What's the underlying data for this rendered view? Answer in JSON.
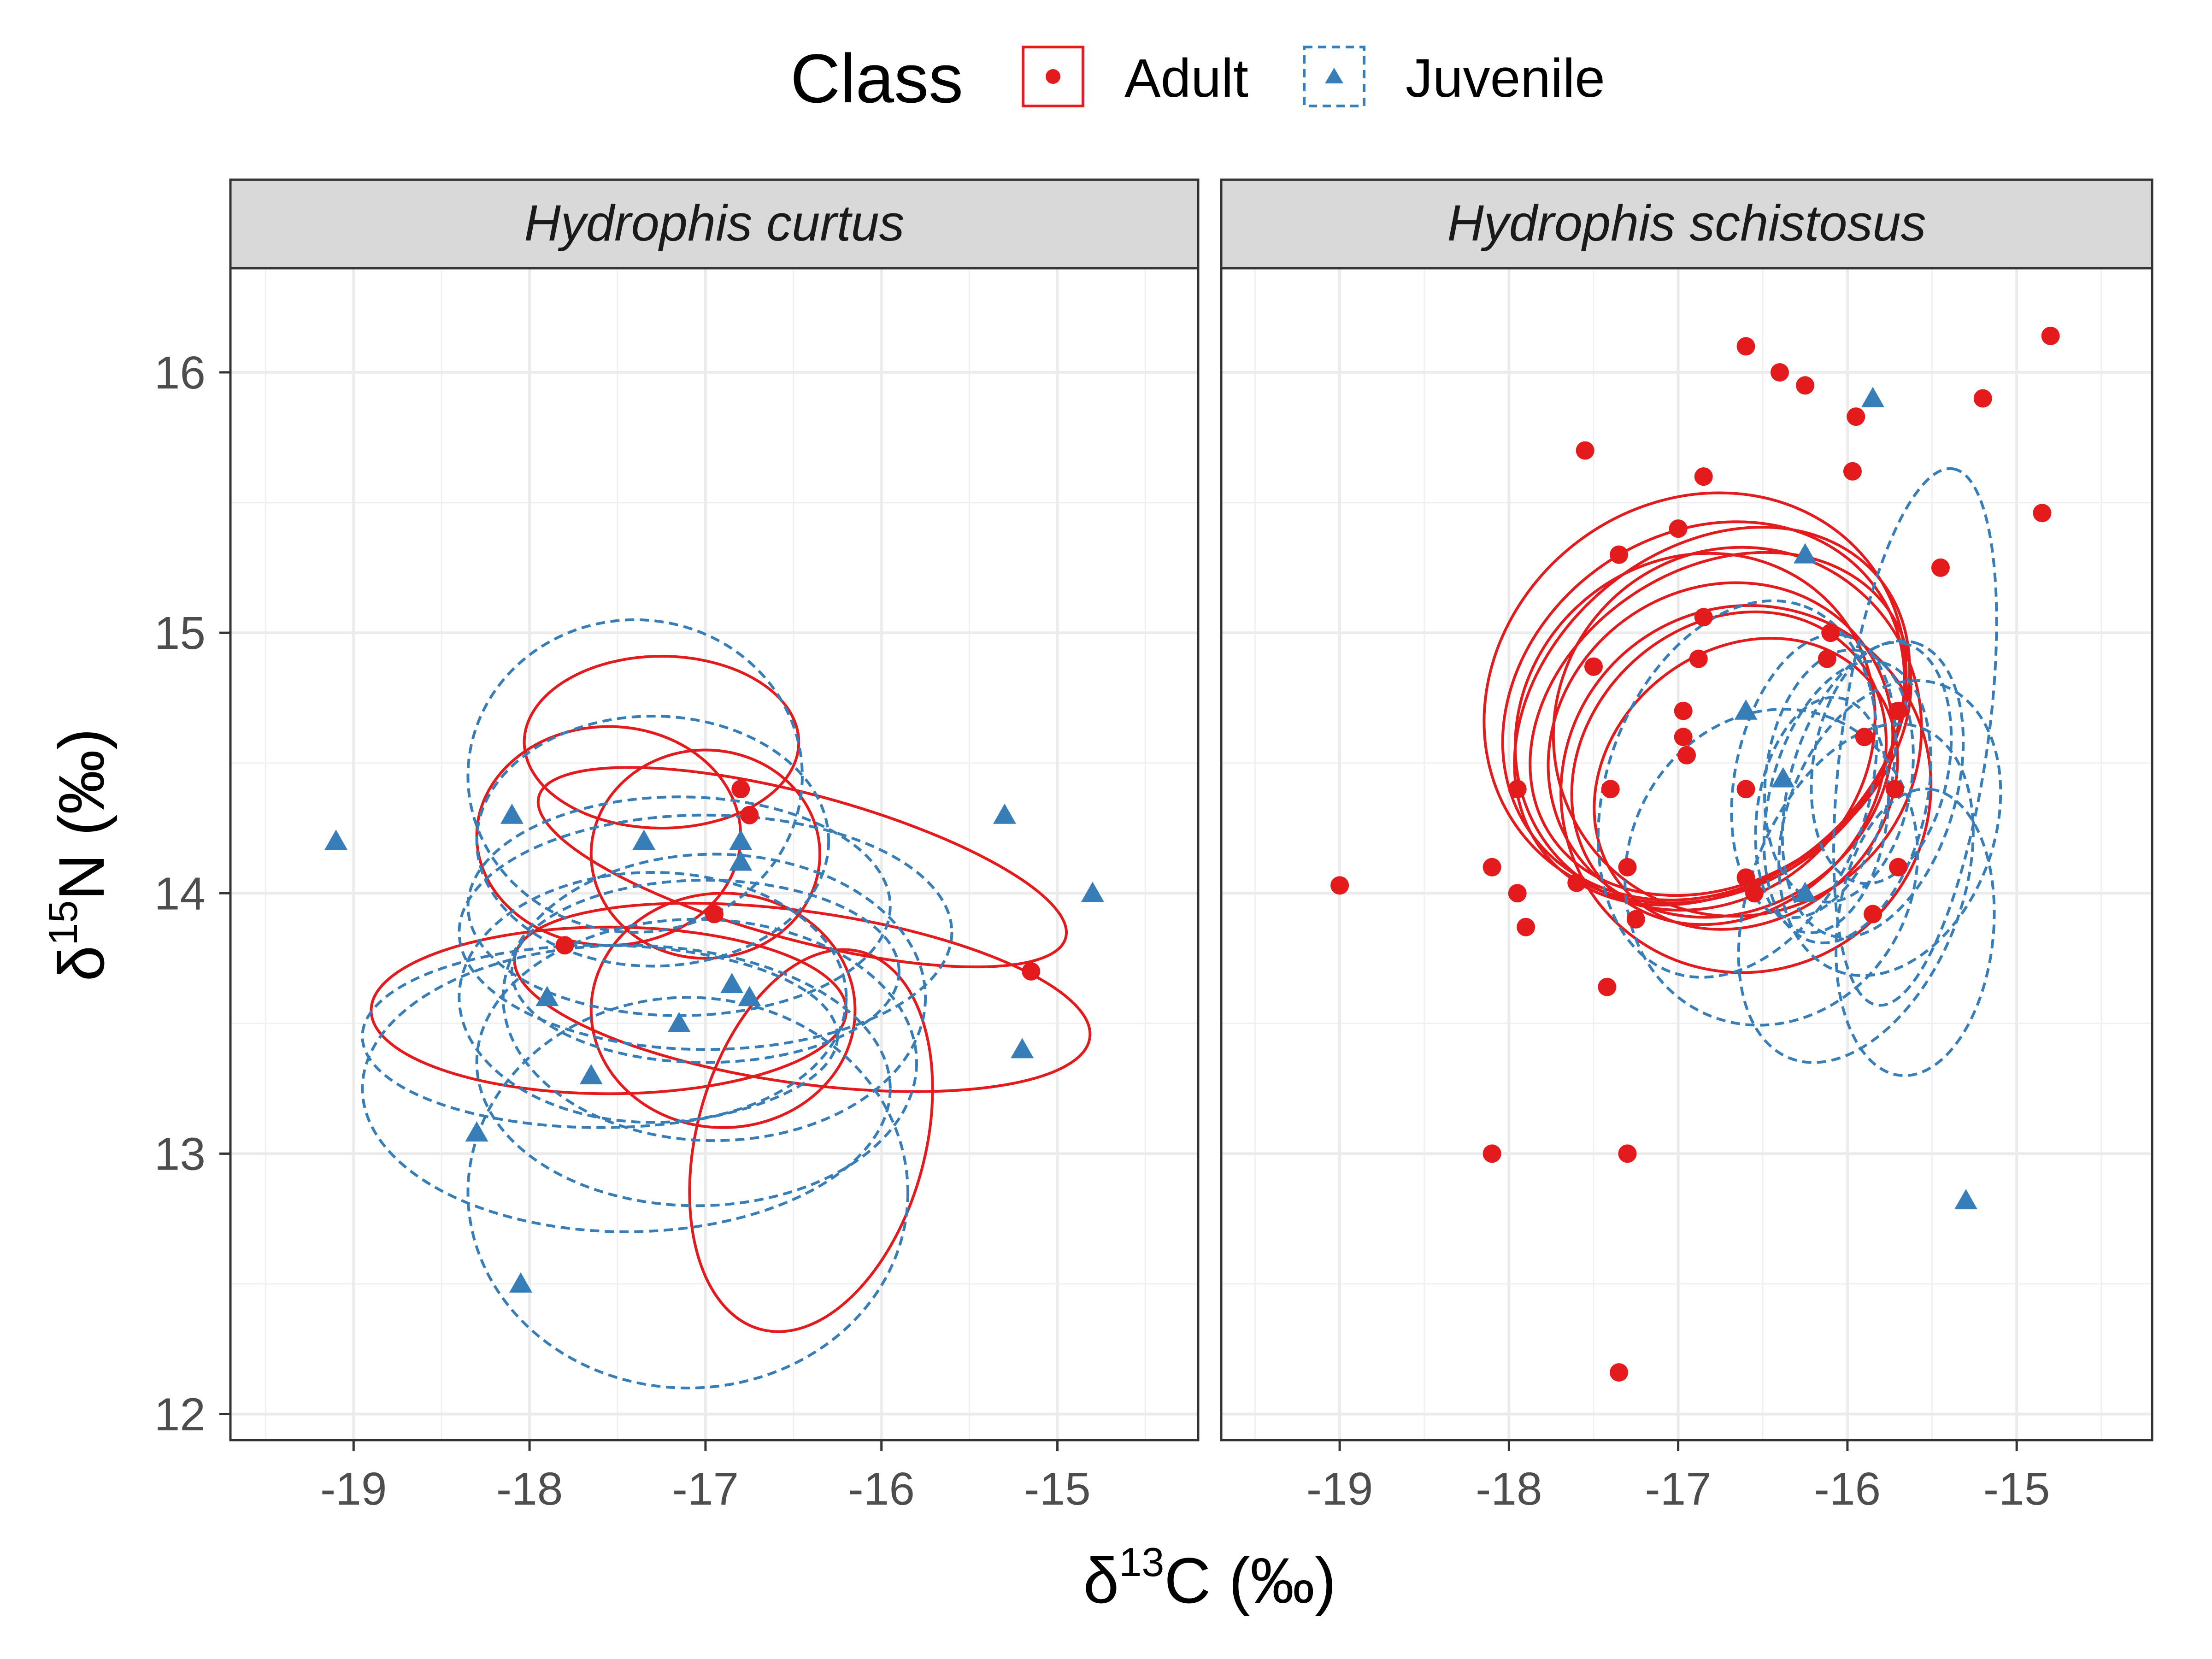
{
  "chart_data": {
    "type": "scatter",
    "xlabel": "δ13C (‰)",
    "ylabel": "δ15N (‰)",
    "xlim": [
      -19.7,
      -14.2
    ],
    "ylim": [
      11.9,
      16.4
    ],
    "x_ticks": [
      -19,
      -18,
      -17,
      -16,
      -15
    ],
    "y_ticks": [
      12,
      13,
      14,
      15,
      16
    ],
    "grid": true,
    "legend": {
      "title": "Class",
      "position": "top",
      "entries": [
        {
          "label": "Adult",
          "color": "#e41a1c",
          "marker": "circle",
          "line": "solid"
        },
        {
          "label": "Juvenile",
          "color": "#377eb8",
          "marker": "triangle",
          "line": "dashed"
        }
      ]
    },
    "panels": [
      {
        "title": "Hydrophis curtus",
        "series": [
          {
            "name": "Adult",
            "points": [
              [
                -16.8,
                14.4
              ],
              [
                -16.75,
                14.3
              ],
              [
                -17.8,
                13.8
              ],
              [
                -16.95,
                13.92
              ],
              [
                -15.15,
                13.7
              ]
            ],
            "ellipses": [
              {
                "cx": -17.25,
                "cy": 14.58,
                "rx": 0.78,
                "ry": 0.33,
                "angle": 0
              },
              {
                "cx": -17.55,
                "cy": 14.22,
                "rx": 0.75,
                "ry": 0.42,
                "angle": 0
              },
              {
                "cx": -17.0,
                "cy": 14.15,
                "rx": 0.65,
                "ry": 0.4,
                "angle": 0
              },
              {
                "cx": -16.45,
                "cy": 14.1,
                "rx": 1.55,
                "ry": 0.28,
                "angle": -15
              },
              {
                "cx": -17.55,
                "cy": 13.55,
                "rx": 1.35,
                "ry": 0.32,
                "angle": 0
              },
              {
                "cx": -16.9,
                "cy": 13.55,
                "rx": 0.75,
                "ry": 0.45,
                "angle": 0
              },
              {
                "cx": -16.45,
                "cy": 13.6,
                "rx": 1.65,
                "ry": 0.33,
                "angle": -8
              },
              {
                "cx": -16.4,
                "cy": 13.05,
                "rx": 0.65,
                "ry": 0.75,
                "angle": -15
              }
            ]
          },
          {
            "name": "Juvenile",
            "points": [
              [
                -19.1,
                14.2
              ],
              [
                -18.1,
                14.3
              ],
              [
                -17.35,
                14.2
              ],
              [
                -16.8,
                14.2
              ],
              [
                -16.8,
                14.12
              ],
              [
                -15.3,
                14.3
              ],
              [
                -14.8,
                14.0
              ],
              [
                -17.9,
                13.6
              ],
              [
                -17.65,
                13.3
              ],
              [
                -17.15,
                13.5
              ],
              [
                -16.85,
                13.65
              ],
              [
                -16.75,
                13.6
              ],
              [
                -15.2,
                13.4
              ],
              [
                -18.3,
                13.08
              ],
              [
                -18.05,
                12.5
              ]
            ],
            "ellipses": [
              {
                "cx": -17.4,
                "cy": 14.45,
                "rx": 0.95,
                "ry": 0.6,
                "angle": 0
              },
              {
                "cx": -17.3,
                "cy": 14.2,
                "rx": 1.0,
                "ry": 0.48,
                "angle": 0
              },
              {
                "cx": -17.15,
                "cy": 13.95,
                "rx": 1.2,
                "ry": 0.42,
                "angle": 0
              },
              {
                "cx": -17.0,
                "cy": 13.85,
                "rx": 1.4,
                "ry": 0.45,
                "angle": 0
              },
              {
                "cx": -17.0,
                "cy": 13.7,
                "rx": 1.1,
                "ry": 0.35,
                "angle": 0
              },
              {
                "cx": -17.3,
                "cy": 13.6,
                "rx": 1.1,
                "ry": 0.48,
                "angle": 0
              },
              {
                "cx": -16.95,
                "cy": 13.6,
                "rx": 1.2,
                "ry": 0.55,
                "angle": 0
              },
              {
                "cx": -17.6,
                "cy": 13.45,
                "rx": 1.35,
                "ry": 0.35,
                "angle": 0
              },
              {
                "cx": -17.45,
                "cy": 13.25,
                "rx": 1.5,
                "ry": 0.55,
                "angle": 0
              },
              {
                "cx": -17.05,
                "cy": 13.35,
                "rx": 1.25,
                "ry": 0.55,
                "angle": 0
              },
              {
                "cx": -17.1,
                "cy": 12.85,
                "rx": 1.25,
                "ry": 0.75,
                "angle": 0
              }
            ]
          }
        ]
      },
      {
        "title": "Hydrophis schistosus",
        "series": [
          {
            "name": "Adult",
            "points": [
              [
                -16.6,
                16.1
              ],
              [
                -16.4,
                16.0
              ],
              [
                -16.25,
                15.95
              ],
              [
                -15.95,
                15.83
              ],
              [
                -14.8,
                16.14
              ],
              [
                -15.2,
                15.9
              ],
              [
                -17.55,
                15.7
              ],
              [
                -16.85,
                15.6
              ],
              [
                -15.97,
                15.62
              ],
              [
                -17.35,
                15.3
              ],
              [
                -17.0,
                15.4
              ],
              [
                -14.85,
                15.46
              ],
              [
                -15.45,
                15.25
              ],
              [
                -16.85,
                15.06
              ],
              [
                -16.1,
                15.0
              ],
              [
                -17.5,
                14.87
              ],
              [
                -16.88,
                14.9
              ],
              [
                -16.12,
                14.9
              ],
              [
                -16.97,
                14.7
              ],
              [
                -16.97,
                14.6
              ],
              [
                -16.95,
                14.53
              ],
              [
                -15.7,
                14.7
              ],
              [
                -15.9,
                14.6
              ],
              [
                -17.95,
                14.4
              ],
              [
                -17.4,
                14.4
              ],
              [
                -16.6,
                14.4
              ],
              [
                -15.72,
                14.4
              ],
              [
                -18.1,
                14.1
              ],
              [
                -17.3,
                14.1
              ],
              [
                -16.6,
                14.06
              ],
              [
                -15.7,
                14.1
              ],
              [
                -19.0,
                14.03
              ],
              [
                -17.95,
                14.0
              ],
              [
                -17.6,
                14.04
              ],
              [
                -16.55,
                14.0
              ],
              [
                -17.9,
                13.87
              ],
              [
                -17.25,
                13.9
              ],
              [
                -15.85,
                13.92
              ],
              [
                -17.42,
                13.64
              ],
              [
                -18.1,
                13.0
              ],
              [
                -17.3,
                13.0
              ],
              [
                -17.35,
                12.16
              ]
            ],
            "ellipses": [
              {
                "cx": -16.9,
                "cy": 14.75,
                "rx": 1.3,
                "ry": 0.75,
                "angle": 38
              },
              {
                "cx": -16.85,
                "cy": 14.7,
                "rx": 1.25,
                "ry": 0.68,
                "angle": 35
              },
              {
                "cx": -16.8,
                "cy": 14.68,
                "rx": 1.28,
                "ry": 0.64,
                "angle": 40
              },
              {
                "cx": -16.75,
                "cy": 14.65,
                "rx": 1.2,
                "ry": 0.6,
                "angle": 33
              },
              {
                "cx": -16.9,
                "cy": 14.62,
                "rx": 1.1,
                "ry": 0.66,
                "angle": 42
              },
              {
                "cx": -16.65,
                "cy": 14.62,
                "rx": 1.1,
                "ry": 0.7,
                "angle": 48
              },
              {
                "cx": -16.75,
                "cy": 14.55,
                "rx": 1.05,
                "ry": 0.62,
                "angle": 36
              },
              {
                "cx": -16.7,
                "cy": 14.48,
                "rx": 1.0,
                "ry": 0.55,
                "angle": 44
              },
              {
                "cx": -16.6,
                "cy": 14.42,
                "rx": 0.95,
                "ry": 0.52,
                "angle": 38
              },
              {
                "cx": -16.6,
                "cy": 14.4,
                "rx": 1.1,
                "ry": 0.7,
                "angle": 34
              }
            ]
          },
          {
            "name": "Juvenile",
            "points": [
              [
                -15.85,
                15.9
              ],
              [
                -16.25,
                15.3
              ],
              [
                -16.6,
                14.7
              ],
              [
                -16.38,
                14.44
              ],
              [
                -16.25,
                14.0
              ],
              [
                -15.3,
                12.82
              ]
            ],
            "ellipses": [
              {
                "cx": -15.6,
                "cy": 14.6,
                "rx": 1.6,
                "ry": 0.28,
                "angle": 82
              },
              {
                "cx": -16.65,
                "cy": 14.4,
                "rx": 1.15,
                "ry": 0.5,
                "angle": 70
              },
              {
                "cx": -16.45,
                "cy": 14.1,
                "rx": 0.95,
                "ry": 0.55,
                "angle": 66
              },
              {
                "cx": -16.2,
                "cy": 14.45,
                "rx": 0.85,
                "ry": 0.3,
                "angle": 78
              },
              {
                "cx": -16.05,
                "cy": 14.45,
                "rx": 0.75,
                "ry": 0.28,
                "angle": 82
              },
              {
                "cx": -16.15,
                "cy": 14.3,
                "rx": 0.7,
                "ry": 0.25,
                "angle": 82
              },
              {
                "cx": -16.0,
                "cy": 14.35,
                "rx": 0.85,
                "ry": 0.3,
                "angle": 76
              },
              {
                "cx": -15.85,
                "cy": 14.4,
                "rx": 0.9,
                "ry": 0.32,
                "angle": 74
              },
              {
                "cx": -15.8,
                "cy": 14.5,
                "rx": 0.72,
                "ry": 0.26,
                "angle": 80
              },
              {
                "cx": -15.95,
                "cy": 14.0,
                "rx": 1.05,
                "ry": 0.4,
                "angle": 68
              },
              {
                "cx": -15.6,
                "cy": 13.85,
                "rx": 0.85,
                "ry": 0.3,
                "angle": 84
              },
              {
                "cx": -15.75,
                "cy": 14.25,
                "rx": 0.9,
                "ry": 0.4,
                "angle": 70
              }
            ]
          }
        ]
      }
    ]
  }
}
